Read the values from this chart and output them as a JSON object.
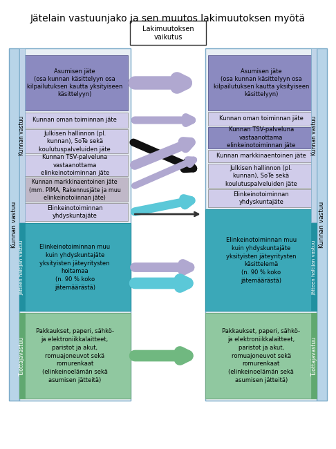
{
  "title": "Jätelain vastuunjako ja sen muutos lakimuutoksen myötä",
  "title_fontsize": 10,
  "fig_bg": "#ffffff",
  "lakimuutos_box": "Lakimuutoksen\nvaikutus",
  "left_column_boxes": [
    {
      "text": "Asumisen jäte\n(osa kunnan käsittelyyn osa\nkilpailutuksen kautta yksityiseen\nkäsittelyyn)",
      "color": "#8B8AC0",
      "text_color": "#000000"
    },
    {
      "text": "Kunnan oman toiminnan jäte",
      "color": "#C8C8E8",
      "text_color": "#000000"
    },
    {
      "text": "Julkisen hallinnon (pl.\nkunnan), SoTe sekä\nkoulutuspalveluiden jäte",
      "color": "#C8C8E8",
      "text_color": "#000000"
    },
    {
      "text": "Kunnan TSV-palveluna\nvastaanottama\nelinkeinotoiminnan jäte",
      "color": "#C8C8E8",
      "text_color": "#000000"
    },
    {
      "text": "Kunnan markkinaentoinen jäte\n(mm. PIMA, Rakennusjäte ja muu\nelinkeinotoiinnan jäte)",
      "color": "#C8C8C8",
      "text_color": "#000000"
    },
    {
      "text": "Elinkeinotoiminnan\nyhdyskuntajäte",
      "color": "#C8C8E8",
      "text_color": "#000000"
    }
  ],
  "left_middle_boxes": [
    {
      "text": "Elinkeinotoiminnan muu\nkuin yhdyskuntajäte\nyksityisten jäteyritysten\nhoitamaa\n(n. 90 % koko\njätemäärästä)",
      "color": "#3BA8B8",
      "text_color": "#000000"
    }
  ],
  "left_bottom_boxes": [
    {
      "text": "Pakkaukset, paperi, sähkö-\nja elektroniikkalaitteet,\nparistot ja akut,\nromuajoneuvot sekä\nromurenkaat\n(elinkeinoelämän sekä\nasumisen jätteitä)",
      "color": "#C8E8D0",
      "text_color": "#000000"
    }
  ],
  "right_column_boxes": [
    {
      "text": "Asumisen jäte\n(osa kunnan käsittelyyn osa\nkilpailutuksen kautta yksityiseen\nkäsittelyyn)",
      "color": "#8B8AC0",
      "text_color": "#000000"
    },
    {
      "text": "Kunnan oman toiminnan jäte",
      "color": "#C8C8E8",
      "text_color": "#000000"
    },
    {
      "text": "Kunnan TSV-palveluna\nvastaanottama\nelinkeinotoiminnan jäte",
      "color": "#8B8AC0",
      "text_color": "#000000"
    },
    {
      "text": "Kunnan markkinaentoinen jäte",
      "color": "#C8C8E8",
      "text_color": "#000000"
    },
    {
      "text": "Julkisen hallinnon (pl.\nkunnan), SoTe sekä\nkoulutuspalveluiden jäte",
      "color": "#C8C8E8",
      "text_color": "#000000"
    },
    {
      "text": "Elinkeinotoiminnan\nyhdyskuntajäte",
      "color": "#C8C8E8",
      "text_color": "#000000"
    }
  ],
  "right_middle_boxes": [
    {
      "text": "Elinkeinotoiminnan muu\nkuin yhdyskuntajäte\nyksityisten jäteyritysten\nkäsittelemä\n(n. 90 % koko\njätemäärästä)",
      "color": "#3BA8B8",
      "text_color": "#000000"
    }
  ],
  "right_bottom_boxes": [
    {
      "text": "Pakkaukset, paperi, sähkö-\nja elektroniikkalaitteet,\nparistot ja akut,\nromuajoneuvot sekä\nromurenkaat\n(elinkeinoelämän sekä\nasumisen jätteitä)",
      "color": "#C8E8D0",
      "text_color": "#000000"
    }
  ],
  "kunnan_vastuu_color": "#B8D4E8",
  "jatteen_haltija_color": "#3BA8B8",
  "tuottajavastuu_color": "#90C8A0",
  "sidebar_text_color": "#000000"
}
